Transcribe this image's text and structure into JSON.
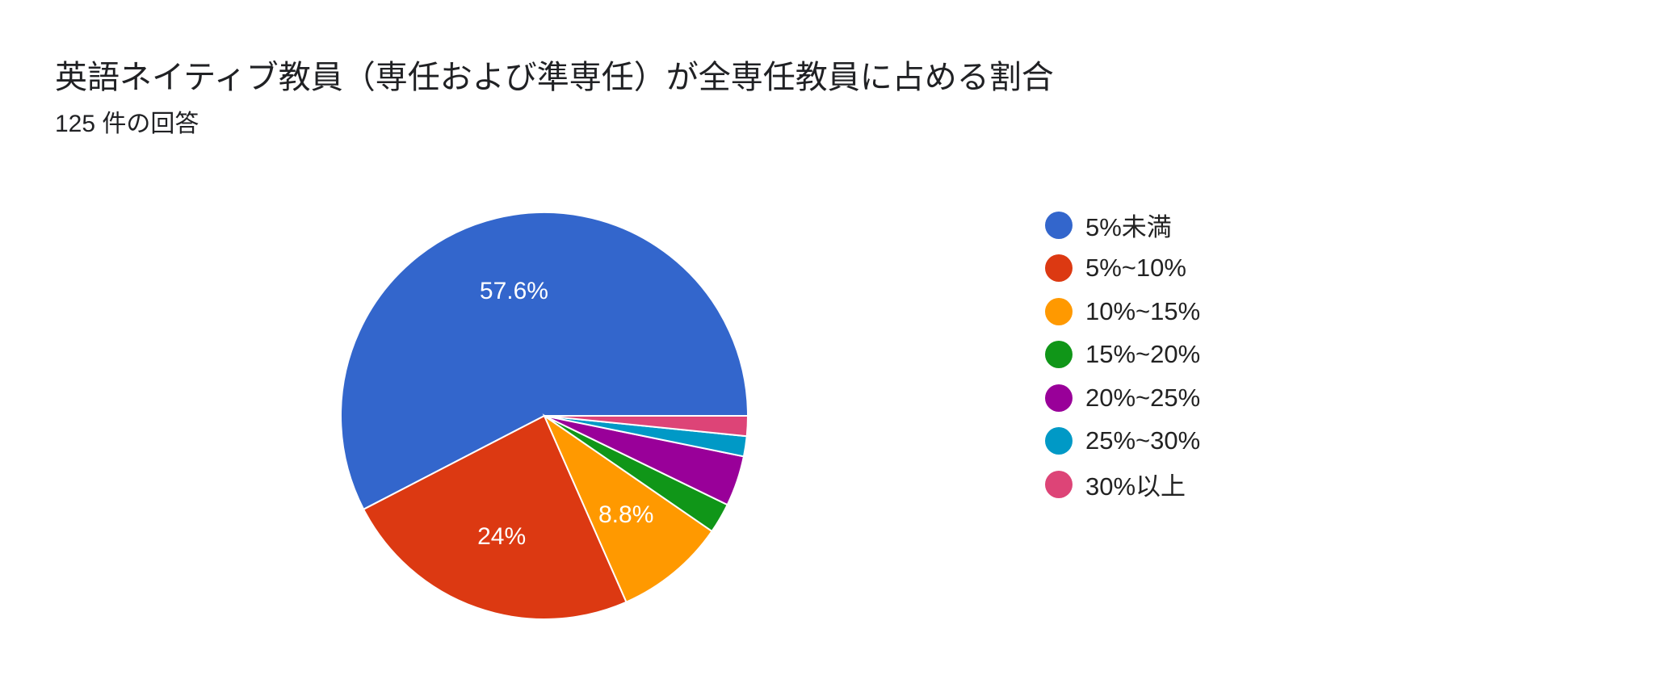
{
  "header": {
    "title": "英語ネイティブ教員（専任および準専任）が全専任教員に占める割合",
    "response_count": "125 件の回答"
  },
  "chart_data": {
    "type": "pie",
    "categories": [
      "5%未満",
      "5%~10%",
      "10%~15%",
      "15%~20%",
      "20%~25%",
      "25%~30%",
      "30%以上"
    ],
    "values": [
      57.6,
      24,
      8.8,
      2.4,
      4,
      1.6,
      1.6
    ],
    "data_labels": [
      "57.6%",
      "24%",
      "8.8%",
      "",
      "",
      "",
      ""
    ],
    "colors": [
      "#3366cc",
      "#dc3912",
      "#ff9900",
      "#109618",
      "#990099",
      "#0099c6",
      "#dd4477"
    ],
    "legend_position": "right",
    "start": "3-o'clock",
    "direction": "counter-clockwise"
  }
}
